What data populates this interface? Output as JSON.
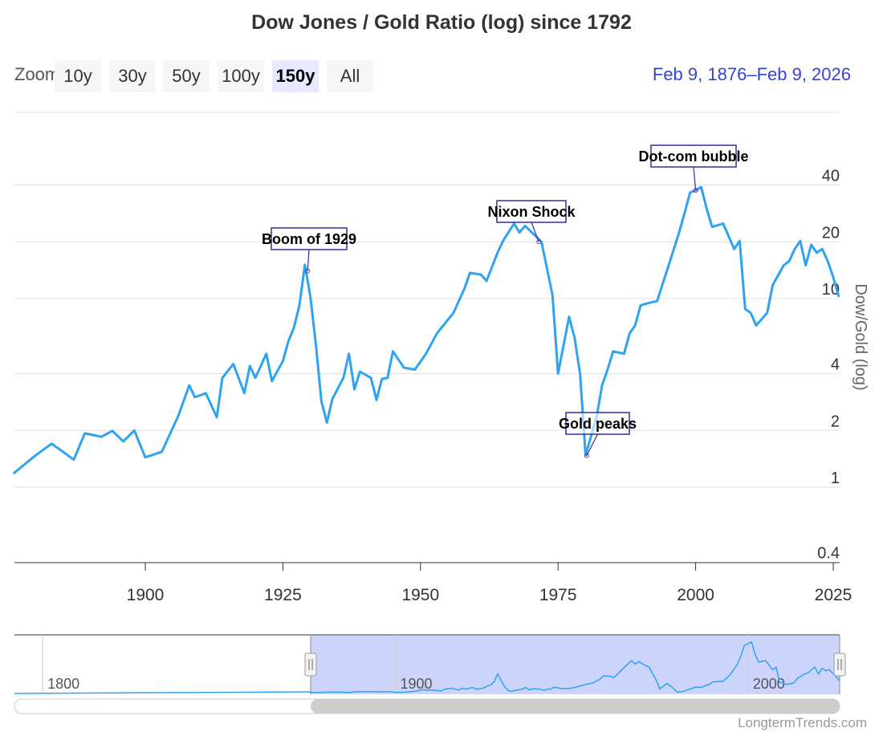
{
  "title": "Dow Jones / Gold Ratio (log) since 1792",
  "toolbar": {
    "zoom_label": "Zoom",
    "buttons": [
      {
        "label": "10y",
        "selected": false
      },
      {
        "label": "30y",
        "selected": false
      },
      {
        "label": "50y",
        "selected": false
      },
      {
        "label": "100y",
        "selected": false
      },
      {
        "label": "150y",
        "selected": true
      },
      {
        "label": "All",
        "selected": false
      }
    ],
    "range_from": "Feb 9, 1876",
    "range_to": "Feb 9, 2026"
  },
  "credit": "LongtermTrends.com",
  "chart_data": {
    "type": "line",
    "title": "Dow Jones / Gold Ratio (log) since 1792",
    "ylabel": "Dow/Gold (log)",
    "xlabel": "",
    "y_scale": "log",
    "xlim": [
      1876,
      2026
    ],
    "ylim": [
      0.4,
      97
    ],
    "x_ticks": [
      "1900",
      "1925",
      "1950",
      "1975",
      "2000",
      "2025"
    ],
    "y_ticks": [
      "0.4",
      "1",
      "2",
      "4",
      "10",
      "20",
      "40"
    ],
    "grid": true,
    "line_color": "#2ea3f2",
    "series": [
      {
        "x": [
          1876,
          1880,
          1883,
          1887,
          1889,
          1892,
          1894,
          1896,
          1898,
          1900,
          1903,
          1906,
          1908,
          1909,
          1911,
          1913,
          1914,
          1916,
          1918,
          1919,
          1920,
          1922,
          1923,
          1925,
          1926,
          1927,
          1928,
          1929,
          1930,
          1931,
          1932,
          1933,
          1934,
          1936,
          1937,
          1938,
          1939,
          1941,
          1942,
          1943,
          1944,
          1945,
          1947,
          1949,
          1951,
          1953,
          1956,
          1958,
          1959,
          1961,
          1962,
          1964,
          1965,
          1967,
          1968,
          1969,
          1971,
          1972,
          1974,
          1975,
          1977,
          1978,
          1979,
          1980,
          1982,
          1983,
          1984,
          1985,
          1987,
          1988,
          1989,
          1990,
          1991,
          1993,
          1995,
          1997,
          1998,
          1999,
          2000,
          2001,
          2002,
          2003,
          2005,
          2007,
          2008,
          2009,
          2010,
          2011,
          2013,
          2014,
          2016,
          2017,
          2018,
          2019,
          2020,
          2021,
          2022,
          2023,
          2024,
          2025,
          2026
        ],
        "y": [
          1.18,
          1.47,
          1.7,
          1.4,
          1.93,
          1.85,
          1.99,
          1.75,
          2.0,
          1.44,
          1.54,
          2.39,
          3.47,
          3.0,
          3.15,
          2.35,
          3.8,
          4.5,
          3.15,
          4.4,
          3.8,
          5.1,
          3.65,
          4.66,
          5.95,
          7.0,
          9.2,
          15.1,
          10.2,
          5.7,
          2.85,
          2.2,
          2.94,
          3.8,
          5.1,
          3.3,
          4.1,
          3.8,
          2.9,
          3.75,
          3.8,
          5.25,
          4.3,
          4.2,
          5.1,
          6.55,
          8.4,
          11.3,
          13.7,
          13.4,
          12.4,
          17.5,
          20.2,
          25,
          22.4,
          24.3,
          21.3,
          20,
          10.4,
          4.0,
          8.0,
          6.2,
          4.0,
          1.48,
          2.35,
          3.47,
          4.2,
          5.25,
          5.1,
          6.55,
          7.2,
          9.2,
          9.4,
          9.7,
          14.7,
          22.4,
          28.5,
          36.5,
          37.5,
          39,
          30,
          24,
          25,
          18.3,
          20.2,
          8.8,
          8.4,
          7.2,
          8.4,
          11.8,
          15,
          15.8,
          18.3,
          20.2,
          15,
          19.3,
          17.5,
          18.3,
          15.8,
          13,
          10.2
        ]
      }
    ],
    "annotations": [
      {
        "label": "Boom of 1929",
        "x": 1929.5,
        "y": 14
      },
      {
        "label": "Nixon Shock",
        "x": 1971.5,
        "y": 20
      },
      {
        "label": "Gold peaks",
        "x": 1980.2,
        "y": 1.47
      },
      {
        "label": "Dot-com bubble",
        "x": 2000,
        "y": 37.5
      }
    ],
    "navigator": {
      "x_ticks": [
        "1800",
        "1900",
        "2000"
      ],
      "range": [
        1792,
        2026
      ],
      "selected": [
        1876,
        2026
      ]
    }
  }
}
